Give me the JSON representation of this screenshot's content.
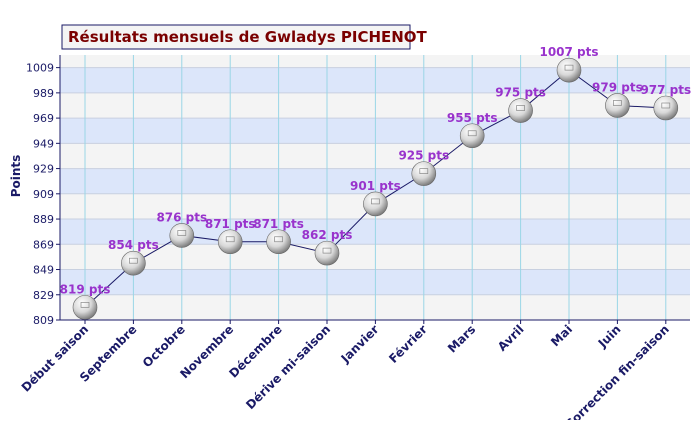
{
  "chart_data": {
    "type": "line",
    "title": "Résultats mensuels de Gwladys PICHENOT",
    "ylabel": "Points",
    "xlabel": "",
    "categories": [
      "Début saison",
      "Septembre",
      "Octobre",
      "Novembre",
      "Décembre",
      "Dérive mi-saison",
      "Janvier",
      "Février",
      "Mars",
      "Avril",
      "Mai",
      "Juin",
      "Correction fin-saison"
    ],
    "values": [
      819,
      854,
      876,
      871,
      871,
      862,
      901,
      925,
      955,
      975,
      1007,
      979,
      977
    ],
    "point_labels": [
      "819 pts",
      "854 pts",
      "876 pts",
      "871 pts",
      "871 pts",
      "862 pts",
      "901 pts",
      "925 pts",
      "955 pts",
      "975 pts",
      "1007 pts",
      "979 pts",
      "977 pts"
    ],
    "y_ticks": [
      809,
      829,
      849,
      869,
      889,
      909,
      929,
      949,
      969,
      989,
      1009
    ],
    "ylim": [
      809,
      1019
    ],
    "grid": true,
    "colors": {
      "band_blue": "#dce6fa",
      "band_grey": "#f4f4f4",
      "line": "#1a1a66",
      "point_label": "#9933cc",
      "title": "#7a0000",
      "axis": "#1a1a66"
    }
  }
}
